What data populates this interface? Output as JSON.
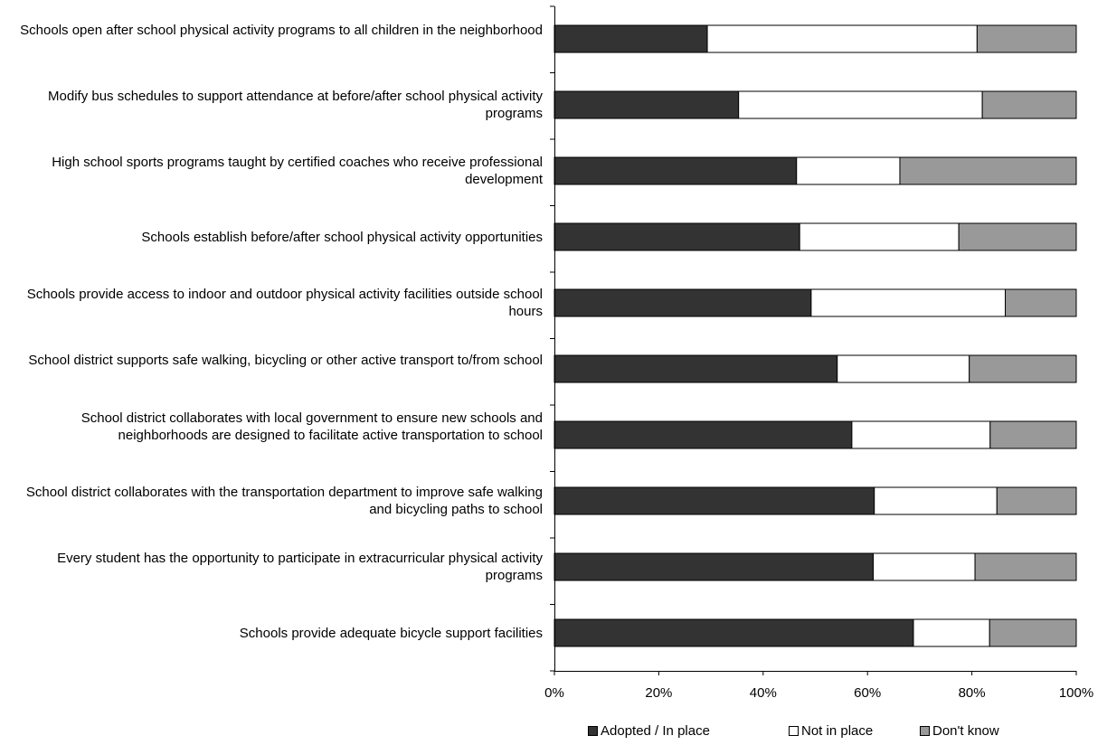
{
  "chart_data": {
    "type": "bar",
    "orientation": "horizontal",
    "stacked": "percent",
    "categories": [
      "Schools open after school physical activity programs to all children in the neighborhood",
      "Modify bus schedules to support attendance at before/after school physical activity programs",
      "High school sports programs taught by certified coaches who receive professional development",
      "Schools establish before/after school physical activity opportunities",
      "Schools provide access to indoor and outdoor physical activity facilities outside school hours",
      "School district supports safe walking, bicycling or other active transport to/from school",
      "School district collaborates with local government to ensure new schools and neighborhoods are designed to facilitate active transportation to school",
      "School district collaborates with the transportation department to improve safe walking and bicycling paths to school",
      "Every student has the opportunity to participate in extracurricular physical activity programs",
      "Schools provide adequate bicycle support facilities"
    ],
    "series": [
      {
        "name": "Adopted / In place",
        "color": "#333333",
        "values": [
          29.3,
          35.3,
          46.4,
          47.0,
          49.2,
          54.2,
          57.0,
          61.3,
          61.1,
          68.8
        ]
      },
      {
        "name": "Not in place",
        "color": "#ffffff",
        "values": [
          51.7,
          46.7,
          19.8,
          30.5,
          37.2,
          25.3,
          26.5,
          23.5,
          19.5,
          14.6
        ]
      },
      {
        "name": "Don't know",
        "color": "#999999",
        "values": [
          19.0,
          18.0,
          33.8,
          22.5,
          13.6,
          20.5,
          16.5,
          15.2,
          19.4,
          16.6
        ]
      }
    ],
    "xlim": [
      0,
      100
    ],
    "xticks": [
      "0%",
      "20%",
      "40%",
      "60%",
      "80%",
      "100%"
    ],
    "title": "",
    "xlabel": "",
    "ylabel": "",
    "grid": false,
    "legend_position": "bottom"
  }
}
